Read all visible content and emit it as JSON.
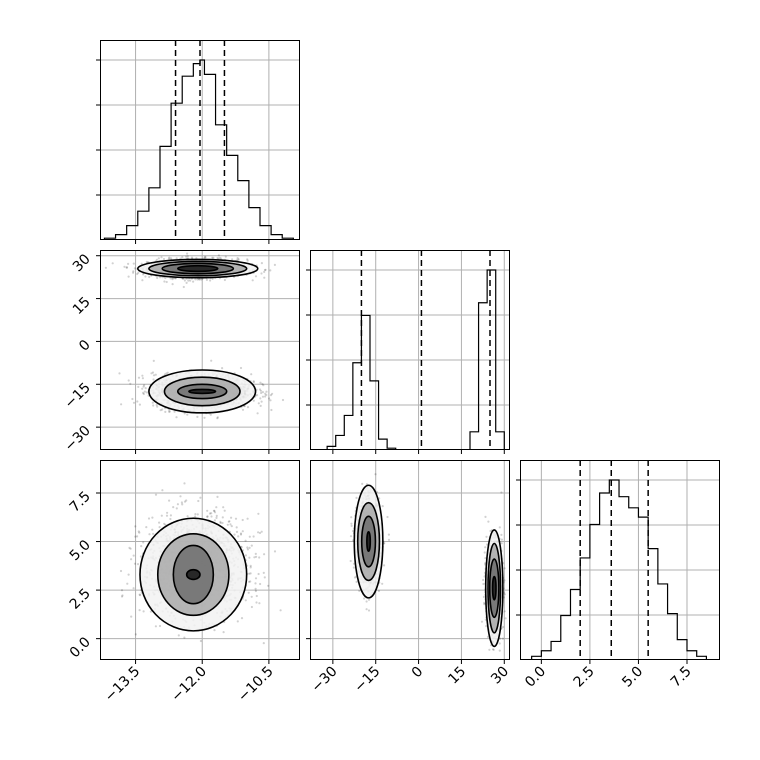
{
  "chart_data": {
    "type": "corner",
    "parameters": [
      {
        "ticks": [
          -13.5,
          -12.0,
          -10.5
        ],
        "tick_labels": [
          "−13.5",
          "−12.0",
          "−10.5"
        ],
        "range": [
          -14.3,
          -9.8
        ],
        "quantiles": [
          -12.6,
          -12.05,
          -11.5
        ],
        "hist": {
          "edges": [
            -14.2,
            -13.95,
            -13.7,
            -13.45,
            -13.2,
            -12.95,
            -12.7,
            -12.45,
            -12.2,
            -12.05,
            -11.95,
            -11.7,
            -11.45,
            -11.2,
            -10.95,
            -10.7,
            -10.45,
            -10.2,
            -9.95
          ],
          "counts": [
            0.01,
            0.03,
            0.08,
            0.16,
            0.29,
            0.52,
            0.76,
            0.91,
            0.98,
            1.0,
            0.92,
            0.64,
            0.47,
            0.33,
            0.18,
            0.08,
            0.03,
            0.01
          ]
        }
      },
      {
        "ticks": [
          -30,
          -15,
          0,
          15,
          30
        ],
        "tick_labels": [
          "−30",
          "−15",
          "0",
          "15",
          "30"
        ],
        "range": [
          -38,
          32
        ],
        "quantiles": [
          -20,
          1,
          25
        ],
        "hist": {
          "edges": [
            -35,
            -32,
            -29,
            -26,
            -23,
            -20,
            -17,
            -14,
            -11,
            -8,
            -5,
            18,
            21,
            24,
            27,
            30,
            32
          ],
          "counts": [
            0.0,
            0.02,
            0.08,
            0.19,
            0.48,
            0.74,
            0.38,
            0.06,
            0.01,
            0.0,
            0.0,
            0.1,
            0.81,
            0.99,
            0.1,
            0.0
          ]
        }
      },
      {
        "ticks": [
          0.0,
          2.5,
          5.0,
          7.5
        ],
        "tick_labels": [
          "0.0",
          "2.5",
          "5.0",
          "7.5"
        ],
        "range": [
          -1.1,
          9.2
        ],
        "quantiles": [
          2.0,
          3.6,
          5.5
        ],
        "hist": {
          "edges": [
            -0.5,
            0.0,
            0.5,
            1.0,
            1.5,
            2.0,
            2.5,
            3.0,
            3.5,
            4.0,
            4.5,
            5.0,
            5.5,
            6.0,
            6.5,
            7.0,
            7.5,
            8.0,
            8.5
          ],
          "counts": [
            0.02,
            0.05,
            0.1,
            0.24,
            0.38,
            0.55,
            0.73,
            0.9,
            0.97,
            0.88,
            0.82,
            0.77,
            0.6,
            0.41,
            0.25,
            0.11,
            0.05,
            0.02
          ]
        }
      }
    ],
    "density_plots": [
      {
        "xparam": 0,
        "yparam": 1,
        "modes": [
          {
            "center": [
              -12.1,
              25.5
            ],
            "spread": [
              0.55,
              1.6
            ]
          },
          {
            "center": [
              -12.0,
              -17.5
            ],
            "spread": [
              0.55,
              3.0
            ]
          }
        ],
        "contours": [
          {
            "center": [
              -12.1,
              25.5
            ],
            "radii": [
              [
                0.45,
                1.0
              ],
              [
                0.8,
                1.8
              ],
              [
                1.1,
                2.5
              ],
              [
                1.35,
                3.2
              ]
            ]
          },
          {
            "center": [
              -12.0,
              -17.5
            ],
            "radii": [
              [
                0.3,
                0.7
              ],
              [
                0.55,
                2.5
              ],
              [
                0.85,
                5.0
              ],
              [
                1.2,
                7.5
              ]
            ]
          }
        ]
      },
      {
        "xparam": 0,
        "yparam": 2,
        "modes": [
          {
            "center": [
              -12.15,
              3.7
            ],
            "spread": [
              0.6,
              1.3
            ]
          }
        ],
        "contours": [
          {
            "center": [
              -12.2,
              3.3
            ],
            "radii": [
              [
                0.15,
                0.25
              ],
              [
                0.45,
                1.5
              ],
              [
                0.8,
                2.1
              ],
              [
                1.2,
                2.9
              ]
            ]
          }
        ]
      },
      {
        "xparam": 1,
        "yparam": 2,
        "modes": [
          {
            "center": [
              -17.5,
              5.0
            ],
            "spread": [
              2.0,
              1.05
            ]
          },
          {
            "center": [
              26.5,
              2.6
            ],
            "spread": [
              1.3,
              1.15
            ]
          }
        ],
        "contours": [
          {
            "center": [
              -17.5,
              5.0
            ],
            "radii": [
              [
                0.6,
                0.5
              ],
              [
                2.4,
                1.3
              ],
              [
                3.8,
                2.0
              ],
              [
                5.0,
                2.9
              ]
            ]
          },
          {
            "center": [
              26.5,
              2.6
            ],
            "radii": [
              [
                0.6,
                0.6
              ],
              [
                1.6,
                1.5
              ],
              [
                2.2,
                2.3
              ],
              [
                3.0,
                3.0
              ]
            ]
          }
        ]
      }
    ]
  }
}
